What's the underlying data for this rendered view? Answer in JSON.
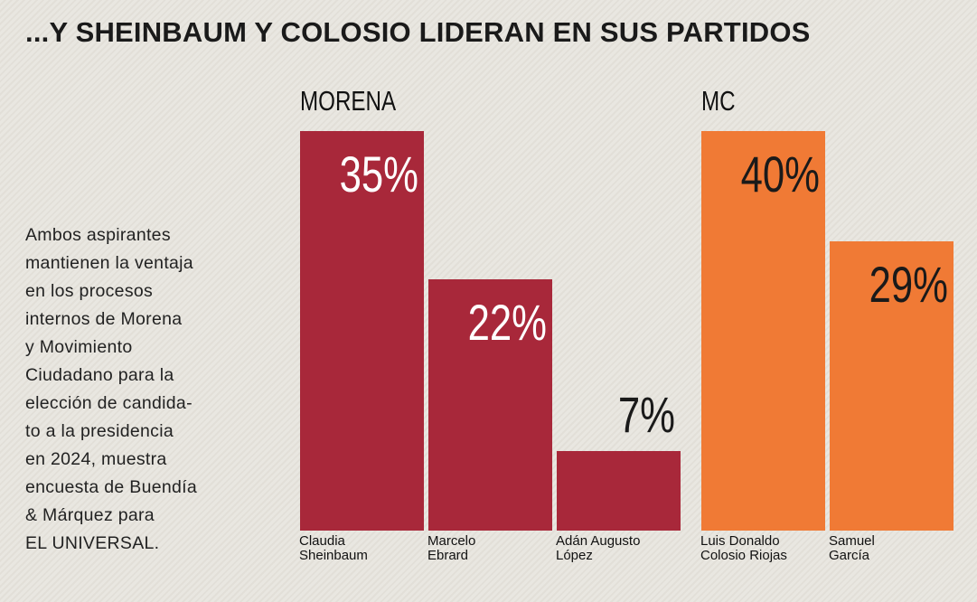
{
  "header": {
    "title": "...Y SHEINBAUM Y COLOSIO LIDERAN EN SUS PARTIDOS"
  },
  "note": {
    "lines": [
      "Ambos aspirantes",
      "mantienen la ventaja",
      "en los procesos",
      "internos de Morena",
      "y Movimiento",
      "Ciudadano para la",
      "elección de candida-",
      "to a la presidencia",
      "en 2024, muestra",
      "encuesta de Buendía",
      "& Márquez para",
      "EL UNIVERSAL."
    ]
  },
  "chart_data": [
    {
      "type": "bar",
      "title": "MORENA",
      "color": "#a8283a",
      "label_color": "#ffffff",
      "categories": [
        "Claudia\nSheinbaum",
        "Marcelo\nEbrard",
        "Adán Augusto\nLópez"
      ],
      "values": [
        35,
        22,
        7
      ],
      "value_labels": [
        "35%",
        "22%",
        "7%"
      ]
    },
    {
      "type": "bar",
      "title": "MC",
      "color": "#f07a35",
      "label_color": "#1a1a1a",
      "categories": [
        "Luis Donaldo\nColosio Riojas",
        "Samuel\nGarcía"
      ],
      "values": [
        40,
        29
      ],
      "value_labels": [
        "40%",
        "29%"
      ]
    }
  ]
}
